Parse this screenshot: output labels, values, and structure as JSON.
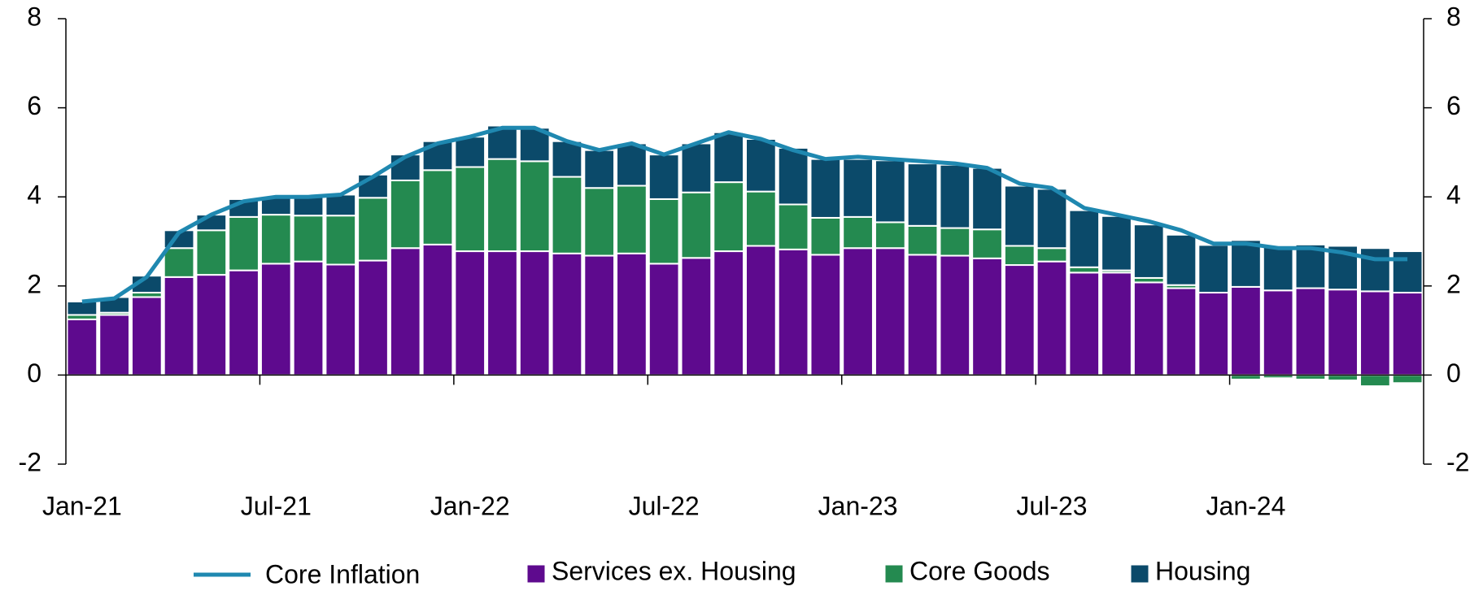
{
  "chart_data": {
    "type": "bar",
    "categories": [
      "Jan-21",
      null,
      null,
      null,
      null,
      null,
      "Jul-21",
      null,
      null,
      null,
      null,
      null,
      "Jan-22",
      null,
      null,
      null,
      null,
      null,
      "Jul-22",
      null,
      null,
      null,
      null,
      null,
      "Jan-23",
      null,
      null,
      null,
      null,
      null,
      "Jul-23",
      null,
      null,
      null,
      null,
      null,
      "Jan-24",
      null,
      null,
      null,
      null,
      null
    ],
    "series": [
      {
        "name": "Core Inflation",
        "type": "line",
        "color": "#1f88b0",
        "values": [
          1.65,
          1.72,
          2.2,
          3.2,
          3.6,
          3.9,
          4.0,
          4.0,
          4.05,
          4.45,
          4.9,
          5.2,
          5.35,
          5.55,
          5.55,
          5.25,
          5.05,
          5.2,
          4.95,
          5.2,
          5.45,
          5.3,
          5.05,
          4.85,
          4.9,
          4.85,
          4.8,
          4.75,
          4.65,
          4.3,
          4.2,
          3.75,
          3.6,
          3.45,
          3.25,
          2.95,
          2.95,
          2.85,
          2.85,
          2.75,
          2.6,
          2.6
        ]
      },
      {
        "name": "Services ex. Housing",
        "type": "bar",
        "color": "#5e0a8e",
        "values": [
          1.25,
          1.35,
          1.75,
          2.2,
          2.25,
          2.35,
          2.5,
          2.55,
          2.48,
          2.57,
          2.85,
          2.93,
          2.78,
          2.78,
          2.78,
          2.73,
          2.68,
          2.73,
          2.5,
          2.63,
          2.78,
          2.9,
          2.82,
          2.7,
          2.85,
          2.85,
          2.7,
          2.68,
          2.62,
          2.47,
          2.55,
          2.3,
          2.3,
          2.08,
          1.95,
          1.85,
          1.98,
          1.9,
          1.95,
          1.92,
          1.88,
          1.85
        ]
      },
      {
        "name": "Core Goods",
        "type": "bar",
        "color": "#248a50",
        "values": [
          0.1,
          0.05,
          0.1,
          0.65,
          1.0,
          1.2,
          1.1,
          1.03,
          1.1,
          1.41,
          1.52,
          1.67,
          1.89,
          2.07,
          2.02,
          1.72,
          1.52,
          1.52,
          1.45,
          1.47,
          1.55,
          1.22,
          1.01,
          0.83,
          0.7,
          0.58,
          0.65,
          0.62,
          0.65,
          0.43,
          0.3,
          0.12,
          0.05,
          0.1,
          0.07,
          0.0,
          -0.1,
          -0.07,
          -0.1,
          -0.12,
          -0.25,
          -0.18
        ]
      },
      {
        "name": "Housing",
        "type": "bar",
        "color": "#0b4a6a",
        "values": [
          0.3,
          0.35,
          0.38,
          0.4,
          0.35,
          0.4,
          0.4,
          0.42,
          0.47,
          0.52,
          0.58,
          0.65,
          0.68,
          0.75,
          0.75,
          0.8,
          0.85,
          0.95,
          1.0,
          1.1,
          1.12,
          1.18,
          1.27,
          1.32,
          1.3,
          1.39,
          1.4,
          1.42,
          1.38,
          1.35,
          1.33,
          1.28,
          1.22,
          1.2,
          1.13,
          1.07,
          1.05,
          0.98,
          0.98,
          0.98,
          0.97,
          0.93
        ]
      }
    ],
    "ylim": [
      -2,
      8
    ],
    "yticks": [
      -2,
      0,
      2,
      4,
      6,
      8
    ],
    "y2lim": [
      -2,
      8
    ],
    "y2ticks": [
      -2,
      0,
      2,
      4,
      6,
      8
    ],
    "legend": "bottom"
  }
}
